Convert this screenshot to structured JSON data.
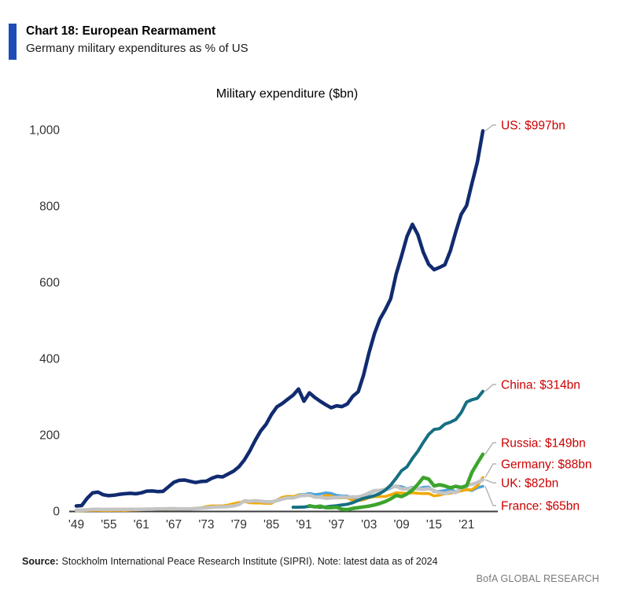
{
  "header": {
    "accent_color": "#1e4db7",
    "title": "Chart 18: European Rearmament",
    "subtitle": "Germany military expenditures as % of US"
  },
  "chart_data": {
    "type": "line",
    "title": "Military expenditure ($bn)",
    "grid": false,
    "legend_position": "right-end-labels",
    "label_color": "#cc0000",
    "tick_color": "#333333",
    "axis_color": "#3c3c3c",
    "connector_color": "#b3b3b3",
    "y_axis": {
      "min": 0,
      "max": 1000,
      "tick_step": 200,
      "tick_labels": [
        "0",
        "200",
        "400",
        "600",
        "800",
        "1,000"
      ]
    },
    "x_axis": {
      "start_year": 1949,
      "end_year": 2024,
      "tick_years": [
        1949,
        1955,
        1961,
        1967,
        1973,
        1979,
        1985,
        1991,
        1997,
        2003,
        2009,
        2015,
        2021
      ],
      "tick_labels": [
        "'49",
        "'55",
        "'61",
        "'67",
        "'73",
        "'79",
        "'85",
        "'91",
        "'97",
        "'03",
        "'09",
        "'15",
        "'21"
      ]
    },
    "series": [
      {
        "name": "France",
        "color": "#4fa3dd",
        "start_year": 1949,
        "end_label": "France: $65bn",
        "final_value": 65,
        "values": [
          1.4,
          1.5,
          2.1,
          3.0,
          3.4,
          3.6,
          3.0,
          3.7,
          3.8,
          3.6,
          3.6,
          3.9,
          4.1,
          4.3,
          4.4,
          4.7,
          5.1,
          5.4,
          5.9,
          5.8,
          5.7,
          6.0,
          6.5,
          7.5,
          9.5,
          10.5,
          13.0,
          13.7,
          14.8,
          17.5,
          20.9,
          26.4,
          24.3,
          23.1,
          21.9,
          21.1,
          20.8,
          28.4,
          34.5,
          36.7,
          36.5,
          42.6,
          43.5,
          46.5,
          43.4,
          44.9,
          47.8,
          46.4,
          41.5,
          39.8,
          39.4,
          33.8,
          33.3,
          36.3,
          45.0,
          52.0,
          52.9,
          54.9,
          60.3,
          66.0,
          64.0,
          59.1,
          62.5,
          58.9,
          62.4,
          63.6,
          50.9,
          52.0,
          54.0,
          58.1,
          50.1,
          53.0,
          56.6,
          53.6,
          61.3,
          65.0
        ]
      },
      {
        "name": "Germany",
        "color": "#f2a900",
        "start_year": 1949,
        "end_label": "Germany: $88bn",
        "final_value": 88,
        "values": [
          1.1,
          1.1,
          1.5,
          2.0,
          1.8,
          1.6,
          1.7,
          1.8,
          2.1,
          1.6,
          2.5,
          2.9,
          3.2,
          4.3,
          4.9,
          4.9,
          5.0,
          5.1,
          5.3,
          4.8,
          5.3,
          6.1,
          7.4,
          8.8,
          11.8,
          13.7,
          13.6,
          13.7,
          15.9,
          19.3,
          22.4,
          25.1,
          21.6,
          21.0,
          21.2,
          20.1,
          20.5,
          29.0,
          36.0,
          38.7,
          38.2,
          42.3,
          39.5,
          42.1,
          37.1,
          35.3,
          41.2,
          39.7,
          34.7,
          35.1,
          34.4,
          28.2,
          27.5,
          29.5,
          35.1,
          38.0,
          38.1,
          38.1,
          42.6,
          48.1,
          47.5,
          46.3,
          48.1,
          46.5,
          45.9,
          46.1,
          39.8,
          41.6,
          45.5,
          46.5,
          49.3,
          53.2,
          56.0,
          55.8,
          66.8,
          88.0
        ]
      },
      {
        "name": "UK",
        "color": "#c4c4c4",
        "start_year": 1949,
        "end_label": "UK: $82bn",
        "final_value": 82,
        "values": [
          2.3,
          2.4,
          3.2,
          4.4,
          4.5,
          4.4,
          4.3,
          4.5,
          4.4,
          4.4,
          4.5,
          4.6,
          4.8,
          5.1,
          5.2,
          5.5,
          5.8,
          6.1,
          6.3,
          5.6,
          5.5,
          5.8,
          6.6,
          7.6,
          8.4,
          9.7,
          11.1,
          11.1,
          11.9,
          13.6,
          17.1,
          26.8,
          25.6,
          27.0,
          25.7,
          24.3,
          24.2,
          27.5,
          31.5,
          34.6,
          34.5,
          39.0,
          41.5,
          41.8,
          36.9,
          36.5,
          33.8,
          34.4,
          35.7,
          36.6,
          36.1,
          37.2,
          37.3,
          40.9,
          47.4,
          53.4,
          54.2,
          57.2,
          63.3,
          65.6,
          58.3,
          58.1,
          60.3,
          58.5,
          56.9,
          59.2,
          53.9,
          48.1,
          46.5,
          50.1,
          48.7,
          60.7,
          68.4,
          70.0,
          75.0,
          82.0
        ]
      },
      {
        "name": "China",
        "color": "#166f82",
        "start_year": 1989,
        "end_label": "China: $314bn",
        "final_value": 314,
        "values": [
          10,
          10,
          10.5,
          12.5,
          11.5,
          10,
          11,
          12.5,
          14,
          16,
          18,
          22,
          28,
          33.5,
          36.5,
          40.5,
          46,
          55,
          68,
          86,
          106,
          116,
          138,
          157,
          180,
          201,
          214,
          216,
          228,
          233,
          240,
          258,
          286,
          292,
          296,
          314
        ]
      },
      {
        "name": "Russia",
        "color": "#3ca42c",
        "start_year": 1992,
        "end_label": "Russia: $149bn",
        "final_value": 149,
        "values": [
          14,
          11,
          13,
          9,
          9,
          10,
          5,
          4,
          7,
          9,
          11,
          13,
          16,
          20,
          25,
          32,
          41,
          38,
          45,
          55,
          70,
          88,
          84,
          66,
          69,
          66,
          61,
          65,
          62,
          66,
          102,
          126,
          149
        ]
      },
      {
        "name": "US",
        "color": "#112b70",
        "start_year": 1949,
        "end_label": "US: $997bn",
        "final_value": 997,
        "values": [
          13.5,
          14.5,
          33.3,
          47.8,
          49.6,
          42.7,
          40.5,
          41.7,
          44.2,
          45.5,
          46.6,
          45.4,
          47.8,
          52.4,
          52.8,
          51.2,
          51.8,
          63.6,
          75.4,
          80.7,
          81.4,
          77.9,
          74.9,
          77.6,
          78.4,
          85.9,
          90.9,
          89.6,
          97.2,
          104.5,
          116.3,
          134.0,
          157.5,
          185.3,
          209.9,
          227.4,
          253.1,
          273.4,
          282.0,
          293.1,
          304.0,
          320.0,
          288.0,
          310.0,
          298.0,
          288.0,
          279.0,
          271.0,
          276.0,
          274.0,
          281.0,
          301.0,
          313.0,
          357.0,
          415.0,
          465.0,
          503.0,
          528.0,
          557.0,
          621.0,
          669.0,
          720.0,
          752.0,
          725.0,
          679.0,
          647.0,
          633.0,
          639.0,
          646.0,
          682.0,
          732.0,
          778.0,
          801.0,
          860.0,
          916.0,
          997.0
        ]
      }
    ]
  },
  "footer": {
    "source_label": "Source:",
    "source_text": "Stockholm International Peace Research Institute (SIPRI). Note: latest data as of 2024",
    "brand": "BofA GLOBAL RESEARCH"
  }
}
